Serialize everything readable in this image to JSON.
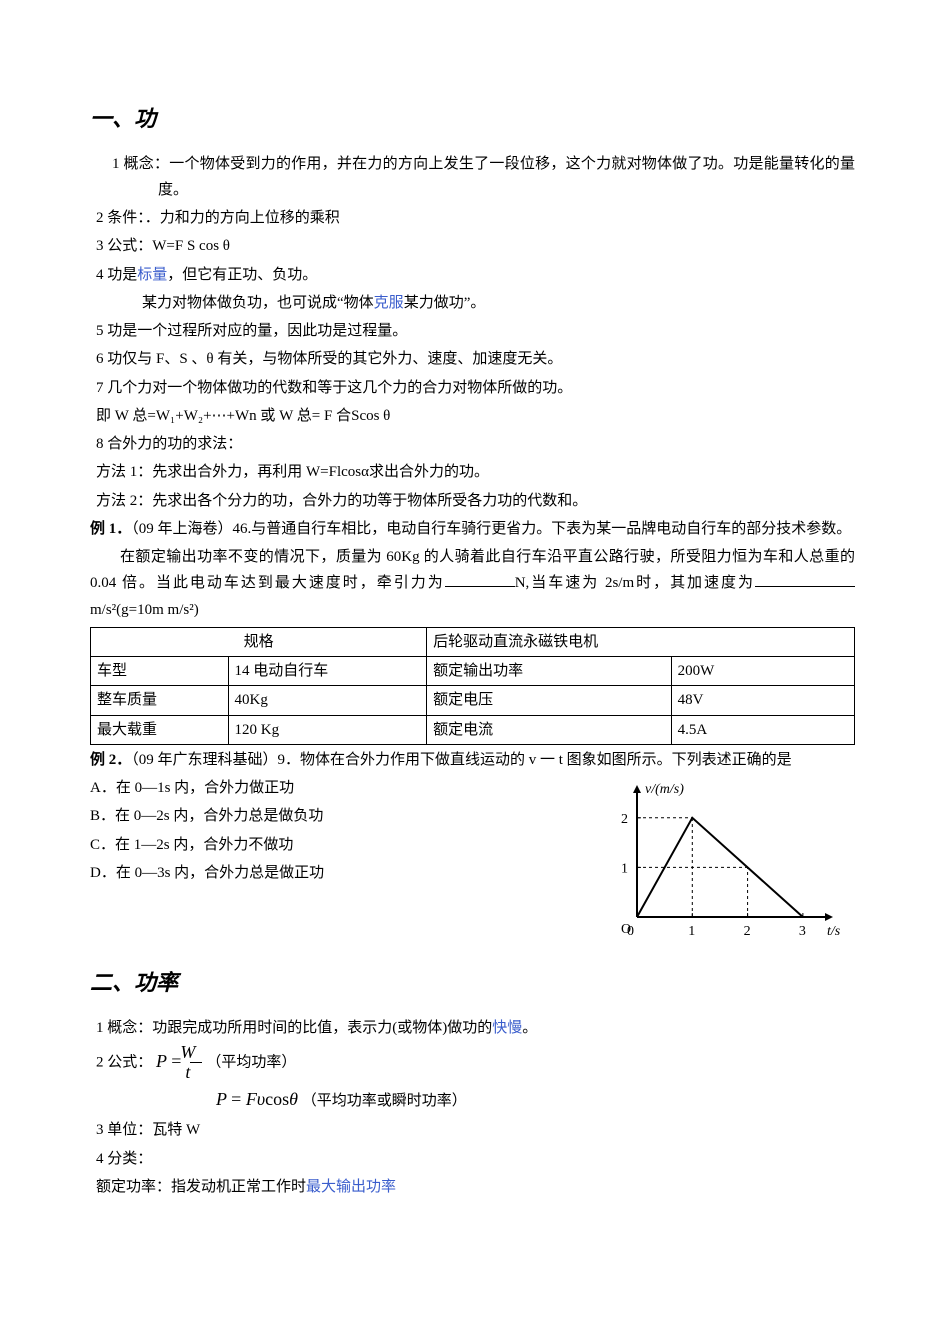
{
  "section1": {
    "heading": "一、功",
    "p1": "1 概念：一个物体受到力的作用，并在力的方向上发生了一段位移，这个力就对物体做了功。功是能量转化的量度。",
    "p2": "2 条件：．力和力的方向上位移的乘积",
    "p3": "3 公式：W=F S cos θ",
    "p4a": "4 功是",
    "p4_link": "标量",
    "p4b": "，但它有正功、负功。",
    "p4sub_a": "某力对物体做负功，也可说成“物体",
    "p4sub_link": "克服",
    "p4sub_b": "某力做功”。",
    "p5": "5 功是一个过程所对应的量，因此功是过程量。",
    "p6": "6 功仅与 F、S 、θ 有关，与物体所受的其它外力、速度、加速度无关。",
    "p7": "7 几个力对一个物体做功的代数和等于这几个力的合力对物体所做的功。",
    "p7sub": "即 W 总=W₁+W₂+⋯+Wn 或 W 总= F 合Scos θ",
    "p8": "8 合外力的功的求法：",
    "p8m1": "方法 1：先求出合外力，再利用 W=Flcosα求出合外力的功。",
    "p8m2": "方法 2：先求出各个分力的功，合外力的功等于物体所受各力功的代数和。"
  },
  "example1": {
    "label": "例 1．",
    "source": "（09 年上海卷）46.与普通自行车相比，电动自行车骑行更省力。下表为某一品牌电动自行车的部分技术参数。",
    "q_a": "在额定输出功率不变的情况下，质量为 60Kg 的人骑着此自行车沿平直公路行驶，所受阻力恒为车和人总重的 0.04 倍。当此电动车达到最大速度时，牵引力为",
    "q_b": "N,当车速为 2s/m时，其加速度为",
    "q_c": "m/s²(g=10m m/s²)"
  },
  "table_spec": {
    "header_left": "规格",
    "header_right": "后轮驱动直流永磁铁电机",
    "rows": [
      {
        "a": "车型",
        "b": "14 电动自行车",
        "c": "额定输出功率",
        "d": "200W"
      },
      {
        "a": "整车质量",
        "b": "40Kg",
        "c": "额定电压",
        "d": "48V"
      },
      {
        "a": "最大载重",
        "b": "120 Kg",
        "c": "额定电流",
        "d": "4.5A"
      }
    ],
    "col_widths": [
      "18%",
      "26%",
      "32%",
      "24%"
    ]
  },
  "example2": {
    "label": "例 2．",
    "source": "（09 年广东理科基础）9．物体在合外力作用下做直线运动的 v 一 t 图象如图所示。下列表述正确的是",
    "choices": {
      "A": "A．在 0—1s 内，合外力做正功",
      "B": "B．在 0—2s 内，合外力总是做负功",
      "C": "C．在 1—2s 内，合外力不做功",
      "D": "D．在 0—3s 内，合外力总是做正功"
    }
  },
  "vt_chart": {
    "type": "line",
    "x_label": "t/s",
    "y_label": "v/(m/s)",
    "x_ticks": [
      0,
      1,
      2,
      3
    ],
    "y_ticks": [
      1,
      2
    ],
    "xlim": [
      0,
      3.4
    ],
    "ylim": [
      0,
      2.5
    ],
    "points": [
      [
        0,
        0
      ],
      [
        1,
        2
      ],
      [
        3,
        0
      ]
    ],
    "axis_color": "#000000",
    "line_color": "#000000",
    "grid_dash_color": "#000000",
    "line_width": 2,
    "tick_fontsize": 14,
    "label_fontsize": 14,
    "dashed_refs": [
      {
        "from": [
          0,
          2
        ],
        "to": [
          1,
          2
        ]
      },
      {
        "from": [
          1,
          0
        ],
        "to": [
          1,
          2
        ]
      },
      {
        "from": [
          0,
          1
        ],
        "to": [
          2,
          1
        ]
      },
      {
        "from": [
          2,
          0
        ],
        "to": [
          2,
          1
        ]
      }
    ]
  },
  "section2": {
    "heading": "二、功率",
    "p1a": "1 概念：功跟完成功所用时间的比值，表示力(或物体)做功的",
    "p1_link": "快慢",
    "p1b": "。",
    "p2_prefix": "2 公式：",
    "f1_note": "（平均功率）",
    "f2_note": "（平均功率或瞬时功率）",
    "p3": "3 单位：瓦特 W",
    "p4": "4 分类：",
    "p4sub_a": "额定功率：指发动机正常工作时",
    "p4sub_link": "最大输出功率"
  }
}
